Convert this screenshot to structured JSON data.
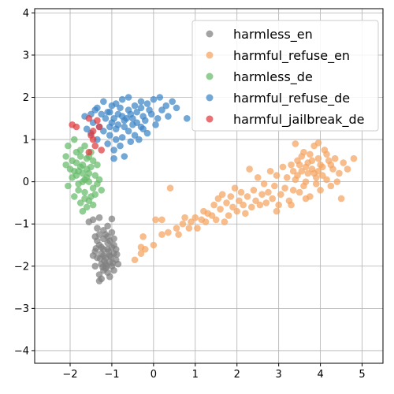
{
  "chart_data": {
    "type": "scatter",
    "title": "",
    "xlabel": "",
    "ylabel": "",
    "xlim": [
      -2.85,
      5.5
    ],
    "ylim": [
      -4.3,
      4.1
    ],
    "xticks": [
      -2,
      -1,
      0,
      1,
      2,
      3,
      4,
      5
    ],
    "yticks": [
      -4,
      -3,
      -2,
      -1,
      0,
      1,
      2,
      3,
      4
    ],
    "grid": true,
    "legend_position": "top-right",
    "series": [
      {
        "name": "harmless_en",
        "color": "#808080",
        "points": [
          [
            -1.1,
            -1.6
          ],
          [
            -1.2,
            -1.75
          ],
          [
            -1.05,
            -1.9
          ],
          [
            -1.3,
            -1.5
          ],
          [
            -1.15,
            -2.05
          ],
          [
            -0.95,
            -1.7
          ],
          [
            -1.25,
            -1.95
          ],
          [
            -1.0,
            -1.55
          ],
          [
            -1.35,
            -1.8
          ],
          [
            -1.1,
            -2.15
          ],
          [
            -0.9,
            -1.85
          ],
          [
            -1.2,
            -1.35
          ],
          [
            -1.3,
            -2.2
          ],
          [
            -1.05,
            -1.4
          ],
          [
            -0.85,
            -1.95
          ],
          [
            -1.4,
            -1.65
          ],
          [
            -1.15,
            -1.25
          ],
          [
            -1.25,
            -2.3
          ],
          [
            -0.95,
            -2.1
          ],
          [
            -1.3,
            -2.35
          ],
          [
            -1.1,
            -1.05
          ],
          [
            -1.45,
            -0.9
          ],
          [
            -1.55,
            -0.95
          ],
          [
            -1.0,
            -0.88
          ],
          [
            -1.3,
            -0.85
          ],
          [
            -1.4,
            -1.3
          ],
          [
            -1.0,
            -1.2
          ],
          [
            -1.2,
            -1.15
          ],
          [
            -0.95,
            -1.35
          ],
          [
            -1.35,
            -1.1
          ],
          [
            -1.05,
            -1.75
          ],
          [
            -1.15,
            -1.95
          ],
          [
            -1.2,
            -1.6
          ],
          [
            -1.0,
            -2.0
          ],
          [
            -1.25,
            -1.7
          ],
          [
            -1.1,
            -1.45
          ],
          [
            -0.9,
            -1.6
          ],
          [
            -1.3,
            -1.25
          ],
          [
            -1.4,
            -2.0
          ],
          [
            -1.05,
            -2.25
          ],
          [
            -1.2,
            -2.1
          ],
          [
            -1.35,
            -1.4
          ],
          [
            -0.95,
            -1.5
          ],
          [
            -1.15,
            -1.8
          ],
          [
            -1.45,
            -1.75
          ],
          [
            -1.25,
            -1.55
          ],
          [
            -1.08,
            -1.66
          ],
          [
            -1.18,
            -1.88
          ],
          [
            -1.02,
            -1.78
          ],
          [
            -1.28,
            -1.82
          ],
          [
            -1.12,
            -2.0
          ],
          [
            -0.98,
            -1.92
          ],
          [
            -1.22,
            -2.02
          ],
          [
            -1.38,
            -1.58
          ],
          [
            -1.1,
            -1.3
          ],
          [
            -0.88,
            -1.72
          ]
        ]
      },
      {
        "name": "harmful_refuse_en",
        "color": "#f4a460",
        "points": [
          [
            -0.45,
            -1.85
          ],
          [
            -0.3,
            -1.55
          ],
          [
            -0.25,
            -1.3
          ],
          [
            -0.2,
            -1.6
          ],
          [
            -0.3,
            -1.7
          ],
          [
            0.0,
            -1.5
          ],
          [
            0.05,
            -0.9
          ],
          [
            0.2,
            -0.9
          ],
          [
            0.2,
            -1.25
          ],
          [
            0.35,
            -1.2
          ],
          [
            0.4,
            -0.15
          ],
          [
            0.55,
            -1.1
          ],
          [
            0.6,
            -1.25
          ],
          [
            0.7,
            -1.0
          ],
          [
            0.75,
            -0.85
          ],
          [
            0.85,
            -1.1
          ],
          [
            0.9,
            -0.95
          ],
          [
            1.0,
            -0.85
          ],
          [
            1.05,
            -1.1
          ],
          [
            1.15,
            -0.9
          ],
          [
            1.2,
            -0.7
          ],
          [
            1.25,
            -0.95
          ],
          [
            1.3,
            -0.75
          ],
          [
            1.4,
            -0.8
          ],
          [
            1.45,
            -0.55
          ],
          [
            1.5,
            -0.9
          ],
          [
            1.55,
            -0.4
          ],
          [
            1.6,
            -0.65
          ],
          [
            1.65,
            -0.3
          ],
          [
            1.7,
            -0.95
          ],
          [
            1.75,
            -0.5
          ],
          [
            1.8,
            -0.8
          ],
          [
            1.85,
            -0.35
          ],
          [
            1.9,
            -0.6
          ],
          [
            1.95,
            -0.15
          ],
          [
            2.0,
            -0.7
          ],
          [
            2.05,
            -0.45
          ],
          [
            2.1,
            -0.25
          ],
          [
            2.15,
            -0.55
          ],
          [
            2.2,
            -0.75
          ],
          [
            2.25,
            -0.35
          ],
          [
            2.3,
            0.3
          ],
          [
            2.35,
            -0.6
          ],
          [
            2.4,
            -0.2
          ],
          [
            2.45,
            -0.45
          ],
          [
            2.5,
            0.1
          ],
          [
            2.55,
            -0.55
          ],
          [
            2.6,
            -0.3
          ],
          [
            2.65,
            -0.05
          ],
          [
            2.7,
            -0.5
          ],
          [
            2.75,
            -0.25
          ],
          [
            2.8,
            0.25
          ],
          [
            2.85,
            -0.4
          ],
          [
            2.9,
            -0.1
          ],
          [
            2.95,
            0.15
          ],
          [
            3.0,
            -0.55
          ],
          [
            3.05,
            -0.3
          ],
          [
            3.1,
            0.35
          ],
          [
            3.15,
            -0.15
          ],
          [
            3.2,
            0.1
          ],
          [
            3.25,
            -0.45
          ],
          [
            3.3,
            0.4
          ],
          [
            3.35,
            -0.2
          ],
          [
            3.4,
            0.05
          ],
          [
            3.45,
            0.5
          ],
          [
            3.5,
            -0.25
          ],
          [
            3.55,
            0.25
          ],
          [
            3.6,
            0.7
          ],
          [
            3.65,
            0.0
          ],
          [
            3.7,
            0.45
          ],
          [
            3.75,
            -0.35
          ],
          [
            3.8,
            0.3
          ],
          [
            3.85,
            0.85
          ],
          [
            3.9,
            0.1
          ],
          [
            3.95,
            0.55
          ],
          [
            4.0,
            -0.2
          ],
          [
            4.05,
            0.35
          ],
          [
            4.1,
            0.75
          ],
          [
            4.15,
            0.05
          ],
          [
            4.2,
            0.5
          ],
          [
            4.25,
            -0.1
          ],
          [
            4.3,
            0.3
          ],
          [
            4.35,
            0.55
          ],
          [
            4.45,
            0.2
          ],
          [
            4.5,
            -0.4
          ],
          [
            4.55,
            0.45
          ],
          [
            4.65,
            0.3
          ],
          [
            4.8,
            0.55
          ],
          [
            3.95,
            0.92
          ],
          [
            3.4,
            0.9
          ],
          [
            4.4,
            0.0
          ],
          [
            3.3,
            -0.55
          ],
          [
            2.95,
            -0.7
          ],
          [
            3.65,
            -0.4
          ],
          [
            3.55,
            0.6
          ],
          [
            3.75,
            0.65
          ],
          [
            4.15,
            0.65
          ],
          [
            3.85,
            0.2
          ],
          [
            3.45,
            0.15
          ],
          [
            3.6,
            -0.1
          ],
          [
            3.9,
            -0.05
          ],
          [
            4.05,
            0.15
          ],
          [
            3.7,
            0.2
          ],
          [
            3.5,
            0.4
          ],
          [
            3.35,
            0.25
          ],
          [
            4.25,
            0.4
          ],
          [
            3.8,
            0.5
          ],
          [
            4.0,
            0.4
          ],
          [
            3.65,
            0.35
          ],
          [
            3.95,
            0.25
          ]
        ]
      },
      {
        "name": "harmless_de",
        "color": "#66bb6a",
        "points": [
          [
            -2.05,
            0.85
          ],
          [
            -1.9,
            1.0
          ],
          [
            -2.1,
            0.6
          ],
          [
            -1.75,
            0.75
          ],
          [
            -2.0,
            0.3
          ],
          [
            -1.85,
            0.45
          ],
          [
            -1.6,
            0.55
          ],
          [
            -1.95,
            0.1
          ],
          [
            -1.7,
            0.2
          ],
          [
            -1.5,
            0.35
          ],
          [
            -2.05,
            -0.1
          ],
          [
            -1.8,
            -0.05
          ],
          [
            -1.55,
            0.0
          ],
          [
            -1.4,
            0.15
          ],
          [
            -1.9,
            -0.35
          ],
          [
            -1.65,
            -0.25
          ],
          [
            -1.45,
            -0.15
          ],
          [
            -1.75,
            -0.5
          ],
          [
            -1.55,
            -0.45
          ],
          [
            -1.7,
            -0.7
          ],
          [
            -1.6,
            -0.6
          ],
          [
            -1.45,
            -0.55
          ],
          [
            -1.3,
            0.05
          ],
          [
            -1.25,
            -0.2
          ],
          [
            -1.35,
            0.4
          ],
          [
            -2.1,
            0.4
          ],
          [
            -1.85,
            0.7
          ],
          [
            -1.65,
            0.85
          ],
          [
            -1.5,
            0.7
          ],
          [
            -1.8,
            0.25
          ],
          [
            -1.6,
            0.3
          ],
          [
            -1.7,
            0.0
          ],
          [
            -1.85,
            0.15
          ],
          [
            -1.95,
            0.5
          ],
          [
            -1.75,
            0.6
          ],
          [
            -1.55,
            0.2
          ],
          [
            -1.4,
            -0.3
          ],
          [
            -1.65,
            -0.4
          ],
          [
            -1.5,
            -0.35
          ],
          [
            -1.8,
            -0.2
          ],
          [
            -1.6,
            0.1
          ],
          [
            -1.7,
            0.4
          ],
          [
            -1.9,
            0.25
          ],
          [
            -1.35,
            -0.05
          ],
          [
            -1.45,
            0.5
          ],
          [
            -1.75,
            0.35
          ],
          [
            -1.55,
            0.6
          ],
          [
            -1.65,
            0.05
          ]
        ]
      },
      {
        "name": "harmful_refuse_de",
        "color": "#3d85c6",
        "points": [
          [
            -1.65,
            1.55
          ],
          [
            -1.5,
            1.6
          ],
          [
            -1.35,
            1.75
          ],
          [
            -1.2,
            1.9
          ],
          [
            -1.05,
            1.65
          ],
          [
            -0.9,
            1.85
          ],
          [
            -0.75,
            1.95
          ],
          [
            -0.6,
            2.0
          ],
          [
            -0.45,
            1.8
          ],
          [
            -0.3,
            1.9
          ],
          [
            -0.15,
            1.85
          ],
          [
            0.0,
            1.95
          ],
          [
            0.15,
            2.0
          ],
          [
            0.3,
            1.8
          ],
          [
            0.45,
            1.9
          ],
          [
            0.55,
            1.75
          ],
          [
            0.2,
            1.7
          ],
          [
            -0.05,
            1.6
          ],
          [
            -0.25,
            1.55
          ],
          [
            -0.5,
            1.5
          ],
          [
            -0.7,
            1.45
          ],
          [
            -0.85,
            1.6
          ],
          [
            -1.0,
            1.4
          ],
          [
            -1.15,
            1.5
          ],
          [
            -1.3,
            1.3
          ],
          [
            -1.45,
            1.4
          ],
          [
            -1.6,
            1.25
          ],
          [
            -1.2,
            1.2
          ],
          [
            -1.05,
            1.1
          ],
          [
            -0.9,
            1.25
          ],
          [
            -0.75,
            1.05
          ],
          [
            -0.6,
            1.2
          ],
          [
            -0.45,
            1.1
          ],
          [
            -0.3,
            1.3
          ],
          [
            -0.15,
            1.15
          ],
          [
            -0.35,
            1.0
          ],
          [
            -0.55,
            0.95
          ],
          [
            -0.8,
            0.85
          ],
          [
            -0.95,
            0.75
          ],
          [
            -1.1,
            0.9
          ],
          [
            -0.7,
            0.6
          ],
          [
            -0.95,
            0.55
          ],
          [
            -1.35,
            1.0
          ],
          [
            -1.5,
            1.15
          ],
          [
            -0.4,
            1.65
          ],
          [
            -0.6,
            1.7
          ],
          [
            -0.8,
            1.75
          ],
          [
            -1.0,
            1.8
          ],
          [
            -0.2,
            1.45
          ],
          [
            0.05,
            1.35
          ],
          [
            -0.1,
            1.7
          ],
          [
            -0.5,
            1.35
          ],
          [
            -0.65,
            1.5
          ],
          [
            -0.85,
            1.35
          ],
          [
            -1.1,
            1.65
          ],
          [
            -1.25,
            1.6
          ],
          [
            0.8,
            1.5
          ],
          [
            0.35,
            1.55
          ],
          [
            0.1,
            1.5
          ],
          [
            -0.3,
            1.75
          ],
          [
            -0.7,
            1.3
          ],
          [
            -0.9,
            1.0
          ],
          [
            -1.05,
            1.3
          ],
          [
            -1.4,
            1.7
          ],
          [
            -0.55,
            1.6
          ],
          [
            -0.75,
            1.55
          ],
          [
            -0.95,
            1.5
          ],
          [
            -0.4,
            1.4
          ],
          [
            -0.25,
            1.25
          ]
        ]
      },
      {
        "name": "harmful_jailbreak_de",
        "color": "#e03a3e",
        "points": [
          [
            -1.95,
            1.35
          ],
          [
            -1.85,
            1.3
          ],
          [
            -1.55,
            1.5
          ],
          [
            -1.5,
            1.1
          ],
          [
            -1.45,
            1.0
          ],
          [
            -1.35,
            1.45
          ],
          [
            -1.3,
            1.3
          ],
          [
            -1.55,
            0.7
          ],
          [
            -1.25,
            0.75
          ],
          [
            -1.4,
            0.85
          ],
          [
            -1.45,
            1.2
          ]
        ]
      }
    ]
  }
}
